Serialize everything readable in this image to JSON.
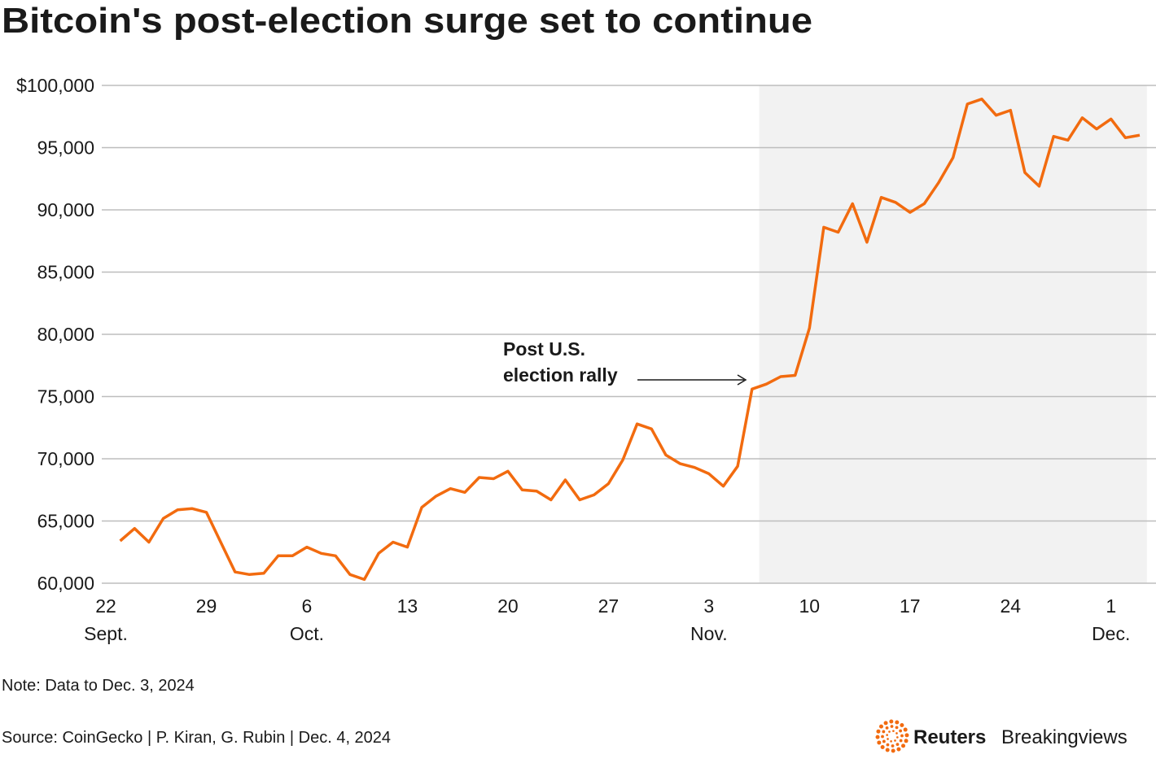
{
  "chart_data": {
    "type": "line",
    "title": "Bitcoin's post-election surge set to continue",
    "x": [
      "2024-09-23",
      "2024-09-24",
      "2024-09-25",
      "2024-09-26",
      "2024-09-27",
      "2024-09-28",
      "2024-09-29",
      "2024-09-30",
      "2024-10-01",
      "2024-10-02",
      "2024-10-03",
      "2024-10-04",
      "2024-10-05",
      "2024-10-06",
      "2024-10-07",
      "2024-10-08",
      "2024-10-09",
      "2024-10-10",
      "2024-10-11",
      "2024-10-12",
      "2024-10-13",
      "2024-10-14",
      "2024-10-15",
      "2024-10-16",
      "2024-10-17",
      "2024-10-18",
      "2024-10-19",
      "2024-10-20",
      "2024-10-21",
      "2024-10-22",
      "2024-10-23",
      "2024-10-24",
      "2024-10-25",
      "2024-10-26",
      "2024-10-27",
      "2024-10-28",
      "2024-10-29",
      "2024-10-30",
      "2024-10-31",
      "2024-11-01",
      "2024-11-02",
      "2024-11-03",
      "2024-11-04",
      "2024-11-05",
      "2024-11-06",
      "2024-11-07",
      "2024-11-08",
      "2024-11-09",
      "2024-11-10",
      "2024-11-11",
      "2024-11-12",
      "2024-11-13",
      "2024-11-14",
      "2024-11-15",
      "2024-11-16",
      "2024-11-17",
      "2024-11-18",
      "2024-11-19",
      "2024-11-20",
      "2024-11-21",
      "2024-11-22",
      "2024-11-23",
      "2024-11-24",
      "2024-11-25",
      "2024-11-26",
      "2024-11-27",
      "2024-11-28",
      "2024-11-29",
      "2024-11-30",
      "2024-12-01",
      "2024-12-02",
      "2024-12-03"
    ],
    "values": [
      63400,
      64400,
      63300,
      65200,
      65900,
      66000,
      65700,
      63300,
      60900,
      60700,
      60800,
      62200,
      62200,
      62900,
      62400,
      62200,
      60700,
      60300,
      62400,
      63300,
      62900,
      66100,
      67000,
      67600,
      67300,
      68500,
      68400,
      69000,
      67500,
      67400,
      66700,
      68300,
      66700,
      67100,
      68000,
      69900,
      72800,
      72400,
      70300,
      69600,
      69300,
      68800,
      67800,
      69400,
      75600,
      76000,
      76600,
      76700,
      80500,
      88600,
      88200,
      90500,
      87400,
      91000,
      90600,
      89800,
      90500,
      92200,
      94200,
      98500,
      98900,
      97600,
      98000,
      93000,
      91900,
      95900,
      95600,
      97400,
      96500,
      97300,
      95800,
      96000
    ],
    "color": "#f26b0f",
    "xlim": [
      "2024-09-22",
      "2024-12-03"
    ],
    "xticks": [
      {
        "value": "2024-09-22",
        "label": "22"
      },
      {
        "value": "2024-09-29",
        "label": "29"
      },
      {
        "value": "2024-10-06",
        "label": "6"
      },
      {
        "value": "2024-10-13",
        "label": "13"
      },
      {
        "value": "2024-10-20",
        "label": "20"
      },
      {
        "value": "2024-10-27",
        "label": "27"
      },
      {
        "value": "2024-11-03",
        "label": "3"
      },
      {
        "value": "2024-11-10",
        "label": "10"
      },
      {
        "value": "2024-11-17",
        "label": "17"
      },
      {
        "value": "2024-11-24",
        "label": "24"
      },
      {
        "value": "2024-12-01",
        "label": "1"
      }
    ],
    "xtick_months": [
      {
        "value": "2024-09-22",
        "label": "Sept."
      },
      {
        "value": "2024-10-06",
        "label": "Oct."
      },
      {
        "value": "2024-11-03",
        "label": "Nov."
      },
      {
        "value": "2024-12-01",
        "label": "Dec."
      }
    ],
    "ylim": [
      60000,
      100000
    ],
    "yticks": [
      {
        "value": 60000,
        "label": "60,000"
      },
      {
        "value": 65000,
        "label": "65,000"
      },
      {
        "value": 70000,
        "label": "70,000"
      },
      {
        "value": 75000,
        "label": "75,000"
      },
      {
        "value": 80000,
        "label": "80,000"
      },
      {
        "value": 85000,
        "label": "85,000"
      },
      {
        "value": 90000,
        "label": "90,000"
      },
      {
        "value": 95000,
        "label": "95,000"
      },
      {
        "value": 100000,
        "label": "$100,000"
      }
    ],
    "grid": true,
    "highlight": {
      "from": "2024-11-06",
      "to": "2024-12-03",
      "color": "#f2f2f2"
    },
    "annotation": [
      "Post U.S.",
      "election rally"
    ],
    "note": "Note: Data to Dec. 3, 2024",
    "source": "Source: CoinGecko | P. Kiran, G. Rubin | Dec. 4, 2024",
    "brand": [
      "Reuters",
      "Breakingviews"
    ]
  }
}
